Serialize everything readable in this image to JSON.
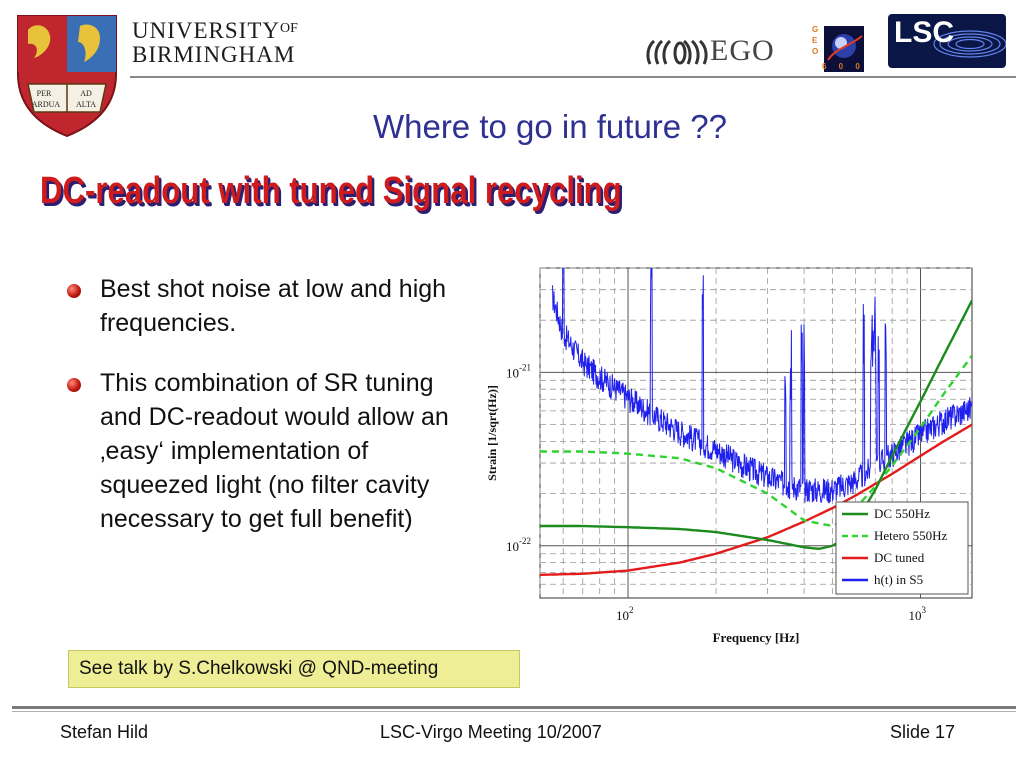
{
  "header": {
    "university_line1": "UNIVERSITY",
    "university_of": "OF",
    "university_line2": "BIRMINGHAM",
    "crest_text": "PER ARDUA AD ALTA",
    "ego_label": "EGO",
    "geo_letters": "G E O",
    "geo_number": "6 0 0",
    "lsc_label": "LSC"
  },
  "slide": {
    "title": "Where to go in future ??",
    "subtitle": "DC-readout with tuned Signal recycling",
    "bullets": [
      "Best shot noise at low and high frequencies.",
      "This combination of SR tuning and DC-readout would allow an ‚easy‘ implementation of squeezed light (no filter cavity necessary to get full benefit)"
    ],
    "note": "See talk by S.Chelkowski @ QND-meeting"
  },
  "footer": {
    "author": "Stefan Hild",
    "meeting": "LSC-Virgo Meeting 10/2007",
    "slide_no": "Slide 17"
  },
  "colors": {
    "title": "#2e3192",
    "wordart": "#cf1b1b",
    "dc550": "#1c8a1c",
    "hetero": "#2fd22f",
    "dctuned": "#e31b1b",
    "s5": "#1f1fee"
  },
  "chart_data": {
    "type": "line",
    "xlabel": "Frequency [Hz]",
    "ylabel": "Strain [1/sqrt(Hz)]",
    "x_scale": "log",
    "y_scale": "log",
    "xlim": [
      50,
      1500
    ],
    "ylim": [
      5e-23,
      4e-21
    ],
    "x_ticks": [
      "10^2",
      "10^3"
    ],
    "y_ticks": [
      "10^-21",
      "10^-22"
    ],
    "grid": true,
    "legend_position": "bottom-right",
    "series": [
      {
        "name": "DC 550Hz",
        "style": "solid",
        "color": "#1c8a1c",
        "x": [
          50,
          70,
          100,
          150,
          200,
          300,
          400,
          450,
          500,
          550,
          600,
          700,
          800,
          1000,
          1200,
          1500
        ],
        "y": [
          1.3e-22,
          1.3e-22,
          1.28e-22,
          1.25e-22,
          1.2e-22,
          1.08e-22,
          9.8e-23,
          9.6e-23,
          1e-22,
          1.1e-22,
          1.35e-22,
          2.1e-22,
          3.3e-22,
          6.8e-22,
          1.25e-21,
          2.6e-21
        ]
      },
      {
        "name": "Hetero 550Hz",
        "style": "dashed",
        "color": "#2fd22f",
        "x": [
          50,
          70,
          100,
          150,
          200,
          300,
          400,
          500,
          550,
          600,
          700,
          800,
          1000,
          1200,
          1500
        ],
        "y": [
          3.5e-22,
          3.5e-22,
          3.4e-22,
          3.2e-22,
          2.8e-22,
          2e-22,
          1.4e-22,
          1.3e-22,
          1.4e-22,
          1.65e-22,
          2.2e-22,
          2.9e-22,
          4.8e-22,
          7.5e-22,
          1.25e-21
        ]
      },
      {
        "name": "DC tuned",
        "style": "solid",
        "color": "#e31b1b",
        "x": [
          50,
          70,
          100,
          150,
          200,
          300,
          400,
          500,
          600,
          800,
          1000,
          1200,
          1500
        ],
        "y": [
          6.8e-23,
          6.9e-23,
          7.2e-23,
          8e-23,
          9e-23,
          1.12e-22,
          1.38e-22,
          1.65e-22,
          1.95e-22,
          2.6e-22,
          3.3e-22,
          4e-22,
          5e-22
        ]
      },
      {
        "name": "h(t) in S5",
        "style": "solid",
        "color": "#1f1fee",
        "x": [
          55,
          60,
          70,
          80,
          100,
          120,
          150,
          200,
          250,
          300,
          350,
          400,
          450,
          500,
          550,
          600,
          700,
          800,
          1000,
          1200,
          1500
        ],
        "y": [
          2.8e-21,
          1.7e-21,
          1.15e-21,
          9.5e-22,
          7.2e-22,
          5.8e-22,
          4.6e-22,
          3.6e-22,
          2.9e-22,
          2.5e-22,
          2.25e-22,
          2.15e-22,
          2.1e-22,
          2.12e-22,
          2.25e-22,
          2.4e-22,
          2.9e-22,
          3.4e-22,
          4.4e-22,
          5.3e-22,
          6.3e-22
        ]
      }
    ]
  }
}
